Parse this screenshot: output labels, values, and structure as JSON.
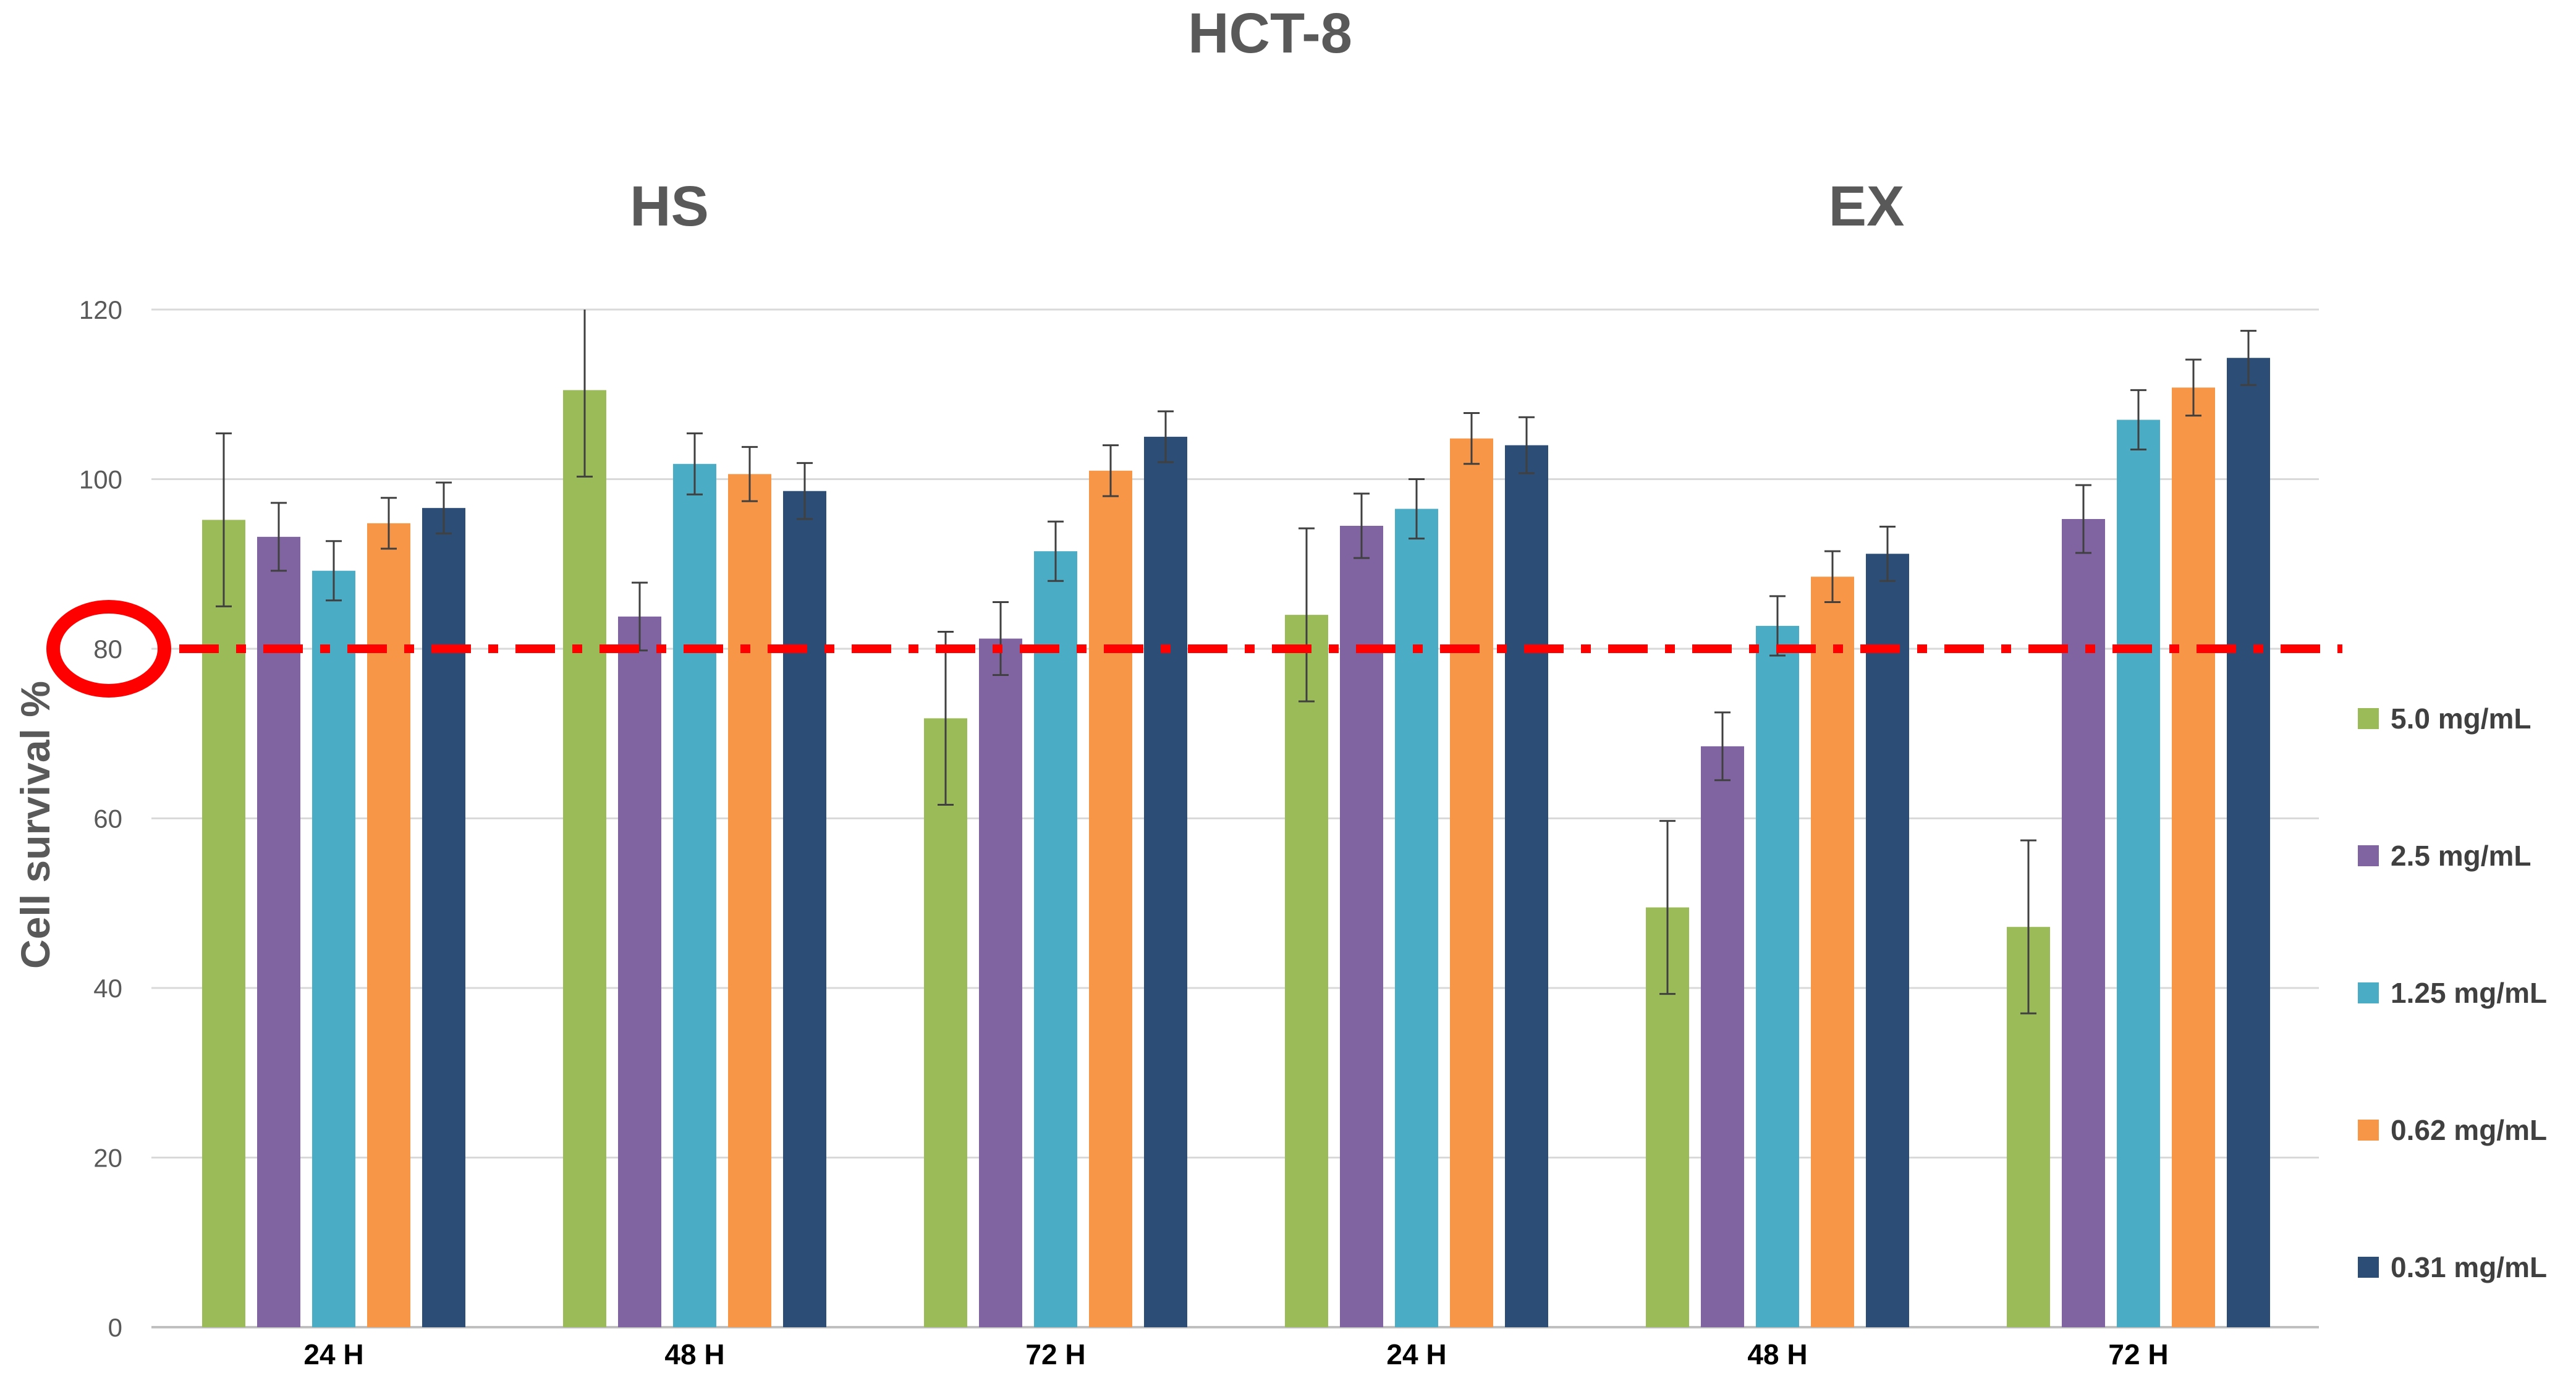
{
  "chart_data": {
    "type": "bar",
    "title": "HCT-8",
    "ylabel": "Cell survival %",
    "xlabel": "",
    "ylim": [
      0,
      120
    ],
    "yticks": [
      0,
      20,
      40,
      60,
      80,
      100,
      120
    ],
    "grid": true,
    "legend_position": "right",
    "groups": [
      {
        "label": "HS",
        "categories": [
          0,
          1,
          2
        ]
      },
      {
        "label": "EX",
        "categories": [
          3,
          4,
          5
        ]
      }
    ],
    "categories": [
      "24 H",
      "48 H",
      "72 H",
      "24 H",
      "48 H",
      "72 H"
    ],
    "series": [
      {
        "name": "5.0 mg/mL",
        "color": "#9BBB59",
        "values": [
          95.2,
          110.5,
          71.8,
          84.0,
          49.5,
          47.2
        ],
        "errors": [
          10.2,
          10.2,
          10.2,
          10.2,
          10.2,
          10.2
        ]
      },
      {
        "name": "2.5 mg/mL",
        "color": "#8064A2",
        "values": [
          93.2,
          83.8,
          81.2,
          94.5,
          68.5,
          95.3
        ],
        "errors": [
          4.0,
          4.0,
          4.3,
          3.8,
          4.0,
          4.0
        ]
      },
      {
        "name": "1.25 mg/mL",
        "color": "#4BACC6",
        "values": [
          89.2,
          101.8,
          91.5,
          96.5,
          82.7,
          107.0
        ],
        "errors": [
          3.5,
          3.6,
          3.5,
          3.5,
          3.5,
          3.5
        ]
      },
      {
        "name": "0.62 mg/mL",
        "color": "#F79646",
        "values": [
          94.8,
          100.6,
          101.0,
          104.8,
          88.5,
          110.8
        ],
        "errors": [
          3.0,
          3.2,
          3.0,
          3.0,
          3.0,
          3.3
        ]
      },
      {
        "name": "0.31 mg/mL",
        "color": "#2C4D75",
        "values": [
          96.6,
          98.6,
          105.0,
          104.0,
          91.2,
          114.3
        ],
        "errors": [
          3.0,
          3.3,
          3.0,
          3.3,
          3.2,
          3.2
        ]
      }
    ],
    "reference_line": {
      "value": 80,
      "color": "#FF0000",
      "style": "dash-dot"
    },
    "highlight_tick": {
      "value": 80,
      "color": "#FF0000",
      "shape": "circle"
    },
    "colors": {
      "gridline": "#D9D9D9",
      "axis": "#BFBFBF",
      "error_bar": "#404040"
    }
  }
}
